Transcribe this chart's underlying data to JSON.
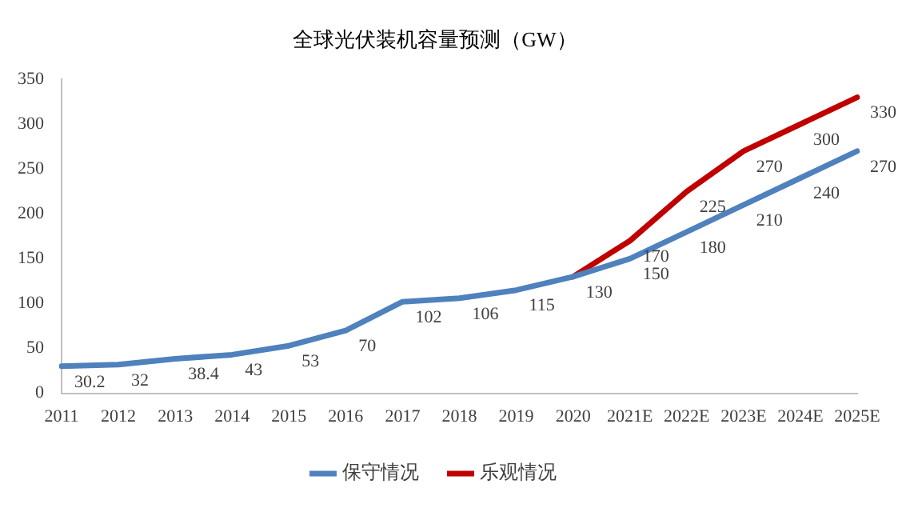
{
  "chart_data": {
    "type": "line",
    "title": "全球光伏装机容量预测（GW）",
    "categories": [
      "2011",
      "2012",
      "2013",
      "2014",
      "2015",
      "2016",
      "2017",
      "2018",
      "2019",
      "2020",
      "2021E",
      "2022E",
      "2023E",
      "2024E",
      "2025E"
    ],
    "series": [
      {
        "name": "保守情况",
        "color": "#4f81bd",
        "values": [
          30.2,
          32,
          38.4,
          43,
          53,
          70,
          102,
          106,
          115,
          130,
          150,
          180,
          210,
          240,
          270
        ]
      },
      {
        "name": "乐观情况",
        "color": "#c00000",
        "values": [
          null,
          null,
          null,
          null,
          null,
          null,
          null,
          null,
          null,
          130,
          170,
          225,
          270,
          300,
          330
        ],
        "value_labels": [
          null,
          null,
          null,
          null,
          null,
          null,
          null,
          null,
          null,
          null,
          "170",
          "225",
          "270",
          "300",
          "330"
        ]
      }
    ],
    "ylim": [
      0,
      350
    ],
    "yticks": [
      0,
      50,
      100,
      150,
      200,
      250,
      300,
      350
    ],
    "grid": false,
    "legend": "bottom",
    "marker": "none",
    "line_style": "solid",
    "data_labels": true
  }
}
